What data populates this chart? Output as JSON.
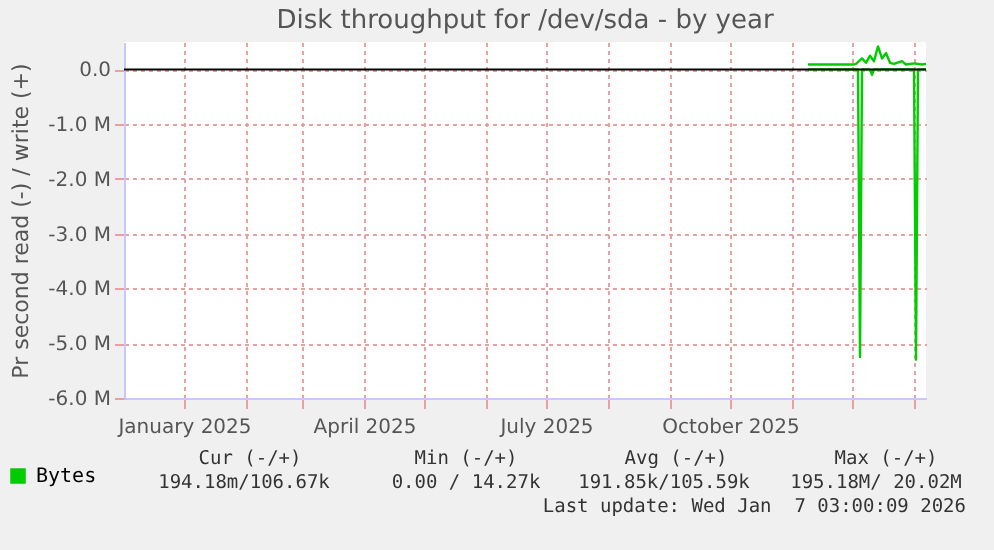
{
  "chart_data": {
    "type": "line",
    "title": "Disk throughput for /dev/sda - by year",
    "ylabel": "Pr second read (-) / write (+)",
    "xlim": [
      "2024-12-02",
      "2026-01-07"
    ],
    "xticks": [
      {
        "value": "2025-01-01",
        "label": "January 2025"
      },
      {
        "value": "2025-02-01",
        "label": null
      },
      {
        "value": "2025-03-01",
        "label": null
      },
      {
        "value": "2025-04-01",
        "label": "April 2025"
      },
      {
        "value": "2025-05-01",
        "label": null
      },
      {
        "value": "2025-06-01",
        "label": null
      },
      {
        "value": "2025-07-01",
        "label": "July 2025"
      },
      {
        "value": "2025-08-01",
        "label": null
      },
      {
        "value": "2025-09-01",
        "label": null
      },
      {
        "value": "2025-10-01",
        "label": "October 2025"
      },
      {
        "value": "2025-11-01",
        "label": null
      },
      {
        "value": "2025-12-01",
        "label": null
      },
      {
        "value": "2026-01-01",
        "label": null
      }
    ],
    "ylim": [
      -6000000,
      500000
    ],
    "yticks": [
      {
        "value": 0,
        "label": "0.0"
      },
      {
        "value": -1000000,
        "label": "-1.0 M"
      },
      {
        "value": -2000000,
        "label": "-2.0 M"
      },
      {
        "value": -3000000,
        "label": "-3.0 M"
      },
      {
        "value": -4000000,
        "label": "-4.0 M"
      },
      {
        "value": -5000000,
        "label": "-5.0 M"
      },
      {
        "value": -6000000,
        "label": "-6.0 M"
      }
    ],
    "grid": true,
    "legend": "bottom left",
    "ref_lines": [
      {
        "axis": "y",
        "value": 0,
        "color": "#000000"
      }
    ],
    "series": [
      {
        "name": "Bytes",
        "color": "#00cc00",
        "x": [
          "2025-11-09",
          "2025-12-02",
          "2025-12-03",
          "2025-12-06",
          "2025-12-08",
          "2025-12-10",
          "2025-12-12",
          "2025-12-14",
          "2025-12-16",
          "2025-12-18",
          "2025-12-20",
          "2025-12-22",
          "2025-12-26",
          "2025-12-28",
          "2026-01-01",
          "2026-01-05",
          "2026-01-07"
        ],
        "values": [
          90000,
          90000,
          100000,
          200000,
          120000,
          250000,
          150000,
          420000,
          200000,
          300000,
          120000,
          100000,
          150000,
          90000,
          110000,
          90000,
          100000
        ]
      },
      {
        "color": "#00cc00",
        "x": [
          "2025-11-09",
          "2025-12-04",
          "2025-12-05",
          "2025-12-06",
          "2025-12-10",
          "2025-12-11",
          "2025-12-12",
          "2026-01-01",
          "2026-01-02",
          "2026-01-03",
          "2026-01-07"
        ],
        "values": [
          0,
          0,
          -5250000,
          0,
          0,
          -100000,
          0,
          0,
          -5300000,
          0,
          0
        ]
      }
    ],
    "annotations": [
      "Cur (-/+)",
      "Min (-/+)",
      "Avg (-/+)",
      "Max (-/+)",
      "194.18m/106.67k",
      "0.00 / 14.27k",
      "191.85k/105.59k",
      "195.18M/ 20.02M",
      "Last update: Wed Jan  7 03:00:09 2026"
    ]
  }
}
